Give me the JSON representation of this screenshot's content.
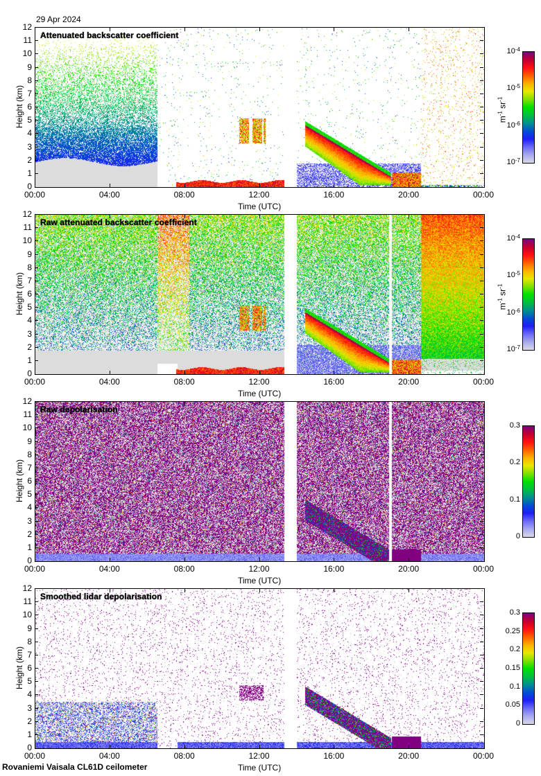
{
  "header": {
    "date": "29 Apr 2024"
  },
  "footer": {
    "instrument": "Rovaniemi Vaisala CL61D ceilometer"
  },
  "colors": {
    "colormap": [
      "#d9d9e6",
      "#a8a8f0",
      "#6a6af5",
      "#1e1ef5",
      "#0050d0",
      "#009090",
      "#00c040",
      "#00e000",
      "#80e000",
      "#e8e800",
      "#ffb000",
      "#ff6000",
      "#ff1010",
      "#c00030",
      "#800080"
    ],
    "background": "#ffffff",
    "noise_grey": "#dcdcdc"
  },
  "chart_data": [
    {
      "type": "heatmap",
      "title": "Attenuated backscatter coefficient",
      "xlabel": "Time (UTC)",
      "ylabel": "Height (km)",
      "xlim": [
        0,
        24
      ],
      "ylim": [
        0,
        12
      ],
      "x_ticks": [
        "00:00",
        "04:00",
        "08:00",
        "12:00",
        "16:00",
        "20:00",
        "00:00"
      ],
      "y_ticks": [
        "0",
        "1",
        "2",
        "3",
        "4",
        "5",
        "6",
        "7",
        "8",
        "9",
        "10",
        "11",
        "12"
      ],
      "colorbar": {
        "scale": "log",
        "range": [
          1e-07,
          0.0001
        ],
        "ticks": [
          {
            "base": "10",
            "exp": "-4"
          },
          {
            "base": "10",
            "exp": "-5"
          },
          {
            "base": "10",
            "exp": "-6"
          },
          {
            "base": "10",
            "exp": "-7"
          }
        ],
        "unit_m": "m",
        "unit_m_exp": "-1",
        "unit_sr": "sr",
        "unit_sr_exp": "-1"
      },
      "data_gaps_hours": [
        [
          13.3,
          13.95
        ]
      ],
      "features": [
        {
          "name": "clear-air noise region",
          "time_range": [
            0,
            6.5
          ],
          "height_range": [
            0,
            6
          ]
        },
        {
          "name": "mid-level cloud",
          "time_range": [
            10.9,
            12.2
          ],
          "height_range": [
            3.5,
            5
          ]
        },
        {
          "name": "descending cloud layer",
          "time_range": [
            14.4,
            19.5
          ],
          "height_range": [
            0.2,
            4.7
          ]
        },
        {
          "name": "low cloud",
          "time_range": [
            18.8,
            20.6
          ],
          "height_range": [
            0,
            1.2
          ]
        },
        {
          "name": "boundary layer aerosol",
          "time_range": [
            8,
            13.3
          ],
          "height_range": [
            0,
            0.8
          ]
        }
      ]
    },
    {
      "type": "heatmap",
      "title": "Raw attenuated backscatter coefficient",
      "xlabel": "Time (UTC)",
      "ylabel": "Height (km)",
      "xlim": [
        0,
        24
      ],
      "ylim": [
        0,
        12
      ],
      "x_ticks": [
        "00:00",
        "04:00",
        "08:00",
        "12:00",
        "16:00",
        "20:00",
        "00:00"
      ],
      "y_ticks": [
        "0",
        "1",
        "2",
        "3",
        "4",
        "5",
        "6",
        "7",
        "8",
        "9",
        "10",
        "11",
        "12"
      ],
      "colorbar": {
        "scale": "log",
        "range": [
          1e-07,
          0.0001
        ],
        "ticks": [
          {
            "base": "10",
            "exp": "-4"
          },
          {
            "base": "10",
            "exp": "-5"
          },
          {
            "base": "10",
            "exp": "-6"
          },
          {
            "base": "10",
            "exp": "-7"
          }
        ],
        "unit_m": "m",
        "unit_m_exp": "-1",
        "unit_sr": "sr",
        "unit_sr_exp": "-1"
      },
      "data_gaps_hours": [
        [
          13.3,
          13.95
        ],
        [
          18.9,
          19.05
        ]
      ]
    },
    {
      "type": "heatmap",
      "title": "Raw depolarisation",
      "xlabel": "Time (UTC)",
      "ylabel": "Height (km)",
      "xlim": [
        0,
        24
      ],
      "ylim": [
        0,
        12
      ],
      "x_ticks": [
        "00:00",
        "04:00",
        "08:00",
        "12:00",
        "16:00",
        "20:00",
        "00:00"
      ],
      "y_ticks": [
        "0",
        "1",
        "2",
        "3",
        "4",
        "5",
        "6",
        "7",
        "8",
        "9",
        "10",
        "11",
        "12"
      ],
      "colorbar": {
        "scale": "linear",
        "range": [
          0,
          0.3
        ],
        "ticks": [
          "0.3",
          "0.2",
          "0.1",
          "0"
        ]
      },
      "data_gaps_hours": [
        [
          13.3,
          13.95
        ],
        [
          18.9,
          19.05
        ]
      ]
    },
    {
      "type": "heatmap",
      "title": "Smoothed lidar depolarisation",
      "xlabel": "Time (UTC)",
      "ylabel": "Height (km)",
      "xlim": [
        0,
        24
      ],
      "ylim": [
        0,
        12
      ],
      "x_ticks": [
        "00:00",
        "04:00",
        "08:00",
        "12:00",
        "16:00",
        "20:00",
        "00:00"
      ],
      "y_ticks": [
        "0",
        "1",
        "2",
        "3",
        "4",
        "5",
        "6",
        "7",
        "8",
        "9",
        "10",
        "11",
        "12"
      ],
      "colorbar": {
        "scale": "linear",
        "range": [
          0,
          0.3
        ],
        "ticks": [
          "0.3",
          "0.25",
          "0.2",
          "0.15",
          "0.1",
          "0.05",
          "0"
        ]
      },
      "data_gaps_hours": [
        [
          13.3,
          13.95
        ]
      ]
    }
  ]
}
